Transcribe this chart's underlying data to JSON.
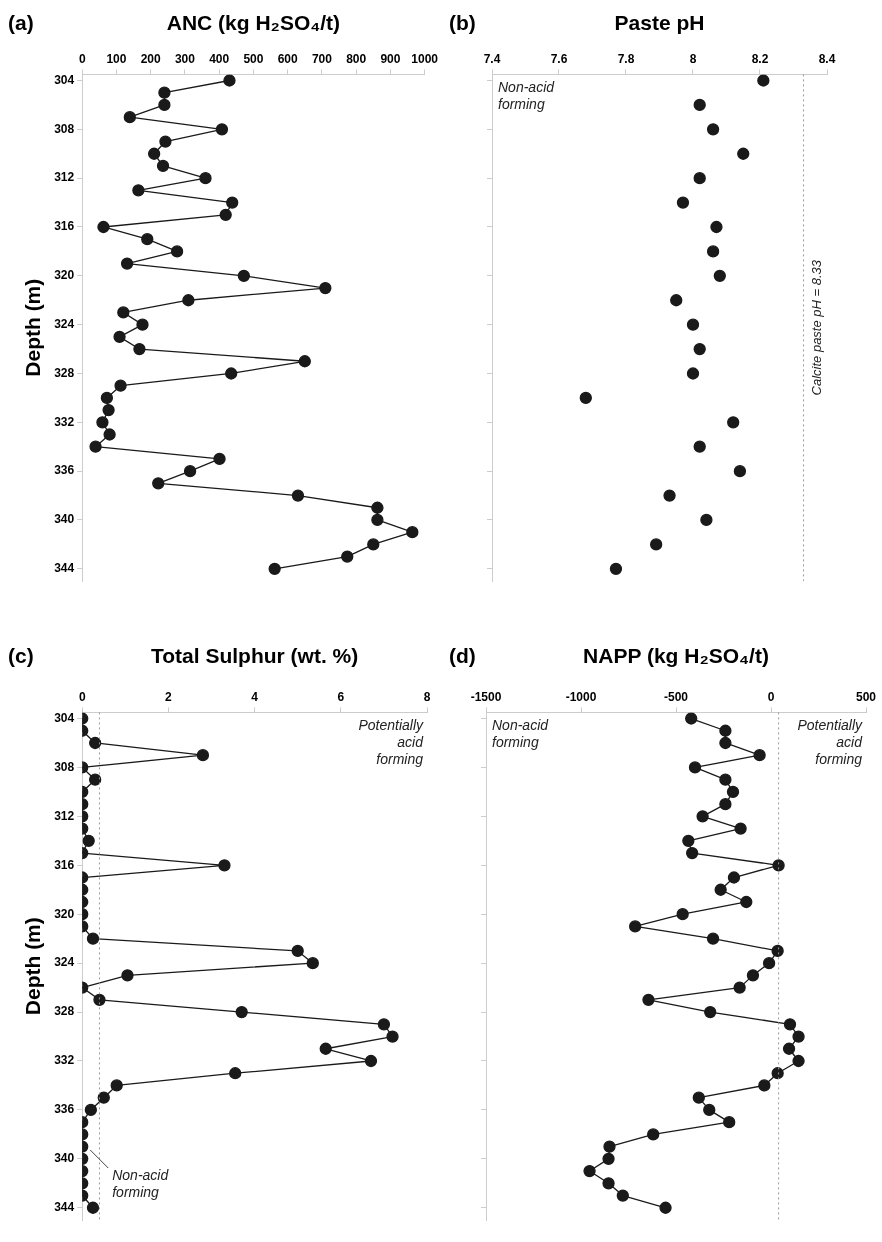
{
  "chart_data": [
    {
      "type": "line",
      "title": "ANC (kg H₂SO₄/t)",
      "ylabel": "Depth (m)",
      "marker": "circle",
      "xlim": [
        0,
        1000
      ],
      "xticks": [
        0,
        100,
        200,
        300,
        400,
        500,
        600,
        700,
        800,
        900,
        1000
      ],
      "ylim": [
        345,
        303.5
      ],
      "yticks": [
        304,
        308,
        312,
        316,
        320,
        324,
        328,
        332,
        336,
        340,
        344
      ],
      "annotations": [
        "(a)"
      ],
      "series": [
        {
          "color": "#1a1a1a",
          "x": [
            430,
            240,
            240,
            139,
            408,
            243,
            210,
            236,
            360,
            164,
            438,
            419,
            62,
            190,
            277,
            131,
            472,
            710,
            310,
            120,
            176,
            109,
            167,
            650,
            435,
            112,
            72,
            77,
            59,
            80,
            39,
            401,
            315,
            222,
            630,
            862,
            862,
            964,
            850,
            774,
            562
          ],
          "values": [
            304,
            305,
            306,
            307,
            308,
            309,
            310,
            311,
            312,
            313,
            314,
            315,
            316,
            317,
            318,
            319,
            320,
            321,
            322,
            323,
            324,
            325,
            326,
            327,
            328,
            329,
            330,
            331,
            332,
            333,
            334,
            335,
            336,
            337,
            338,
            339,
            340,
            341,
            342,
            343,
            344
          ]
        }
      ]
    },
    {
      "type": "scatter",
      "title": "Paste pH",
      "marker": "circle",
      "tick_labels": "x",
      "xlim": [
        7.4,
        8.4
      ],
      "xticks": [
        7.4,
        7.6,
        7.8,
        8,
        8.2,
        8.4
      ],
      "ylim": [
        345,
        303.5
      ],
      "yticks": [
        304,
        308,
        312,
        316,
        320,
        324,
        328,
        332,
        336,
        340,
        344
      ],
      "annotations": [
        "(b)",
        "Non-acid forming"
      ],
      "ref_lines": [
        {
          "axis": "x",
          "value": 8.33,
          "label": "Calcite paste pH = 8.33",
          "color": "#999999",
          "line_style": "dotted"
        }
      ],
      "series": [
        {
          "color": "#1a1a1a",
          "x": [
            8.21,
            8.02,
            8.06,
            8.15,
            8.02,
            7.97,
            8.07,
            8.06,
            8.08,
            7.95,
            8.0,
            8.02,
            8.0,
            7.68,
            8.12,
            8.02,
            8.14,
            7.93,
            8.04,
            7.89,
            7.77
          ],
          "values": [
            304,
            306,
            308,
            310,
            312,
            314,
            316,
            318,
            320,
            322,
            324,
            326,
            328,
            330,
            332,
            334,
            336,
            338,
            340,
            342,
            344
          ]
        }
      ]
    },
    {
      "type": "line",
      "title": "Total Sulphur (wt. %)",
      "ylabel": "Depth (m)",
      "marker": "circle",
      "xlim": [
        0,
        8
      ],
      "xticks": [
        0,
        2,
        4,
        6,
        8
      ],
      "ylim": [
        345,
        303.5
      ],
      "yticks": [
        304,
        308,
        312,
        316,
        320,
        324,
        328,
        332,
        336,
        340,
        344
      ],
      "annotations": [
        "(c)",
        "Potentially acid forming",
        "Non-acid forming"
      ],
      "ref_lines": [
        {
          "axis": "x",
          "value": 0.4,
          "color": "#999999",
          "line_style": "dotted"
        }
      ],
      "series": [
        {
          "color": "#1a1a1a",
          "x": [
            0,
            0,
            0.3,
            2.8,
            0,
            0.3,
            0,
            0,
            0,
            0,
            0.15,
            0,
            3.3,
            0,
            0,
            0,
            0,
            0,
            0.25,
            5,
            5.35,
            1.05,
            0,
            0.4,
            3.7,
            7,
            7.2,
            5.65,
            6.7,
            3.55,
            0.8,
            0.5,
            0.2,
            0,
            0,
            0,
            0,
            0,
            0,
            0,
            0.25
          ],
          "values": [
            304,
            305,
            306,
            307,
            308,
            309,
            310,
            311,
            312,
            313,
            314,
            315,
            316,
            317,
            318,
            319,
            320,
            321,
            322,
            323,
            324,
            325,
            326,
            327,
            328,
            329,
            330,
            331,
            332,
            333,
            334,
            335,
            336,
            337,
            338,
            339,
            340,
            341,
            342,
            343,
            344
          ]
        }
      ]
    },
    {
      "type": "line",
      "title": "NAPP (kg H₂SO₄/t)",
      "marker": "circle",
      "tick_labels": "x",
      "xlim": [
        -1500,
        500
      ],
      "xticks": [
        -1500,
        -1000,
        -500,
        0,
        500
      ],
      "ylim": [
        345,
        303.5
      ],
      "yticks": [
        304,
        308,
        312,
        316,
        320,
        324,
        328,
        332,
        336,
        340,
        344
      ],
      "annotations": [
        "(d)",
        "Non-acid forming",
        "Potentially acid forming"
      ],
      "ref_lines": [
        {
          "axis": "x",
          "value": 40,
          "color": "#999999",
          "line_style": "dotted"
        }
      ],
      "series": [
        {
          "color": "#1a1a1a",
          "x": [
            -420,
            -240,
            -240,
            -60,
            -400,
            -240,
            -200,
            -240,
            -360,
            -160,
            -435,
            -415,
            40,
            -195,
            -265,
            -130,
            -465,
            -715,
            -305,
            35,
            -10,
            -95,
            -165,
            -645,
            -320,
            100,
            145,
            95,
            145,
            35,
            -35,
            -380,
            -325,
            -220,
            -620,
            -850,
            -855,
            -955,
            -855,
            -780,
            -555
          ],
          "values": [
            304,
            305,
            306,
            307,
            308,
            309,
            310,
            311,
            312,
            313,
            314,
            315,
            316,
            317,
            318,
            319,
            320,
            321,
            322,
            323,
            324,
            325,
            326,
            327,
            328,
            329,
            330,
            331,
            332,
            333,
            334,
            335,
            336,
            337,
            338,
            339,
            340,
            341,
            342,
            343,
            344
          ]
        }
      ]
    }
  ]
}
